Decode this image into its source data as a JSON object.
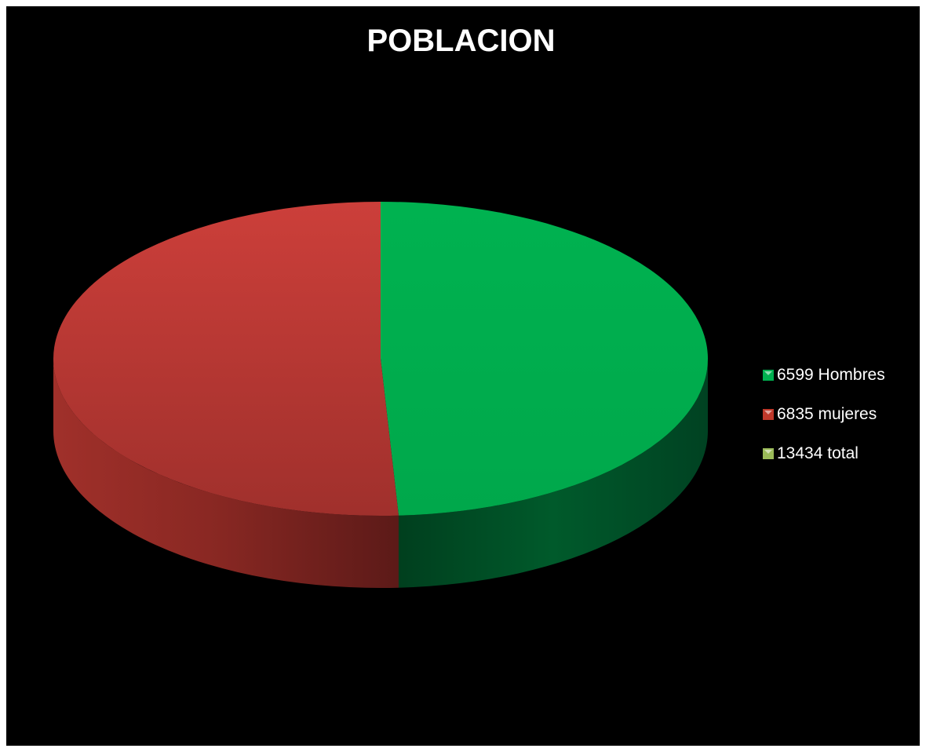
{
  "chart_data": {
    "type": "pie",
    "title": "POBLACION",
    "categories": [
      "6599 Hombres",
      "6835 mujeres",
      "13434 total"
    ],
    "values": [
      6599,
      6835,
      0
    ],
    "colors": [
      "#00b050",
      "#c0392b",
      "#9bbb59"
    ],
    "legend_position": "right"
  },
  "legend": {
    "items": [
      {
        "label": "6599 Hombres",
        "color": "#00b050"
      },
      {
        "label": "6835 mujeres",
        "color": "#c0392b"
      },
      {
        "label": "13434 total",
        "color": "#9bbb59"
      }
    ]
  }
}
